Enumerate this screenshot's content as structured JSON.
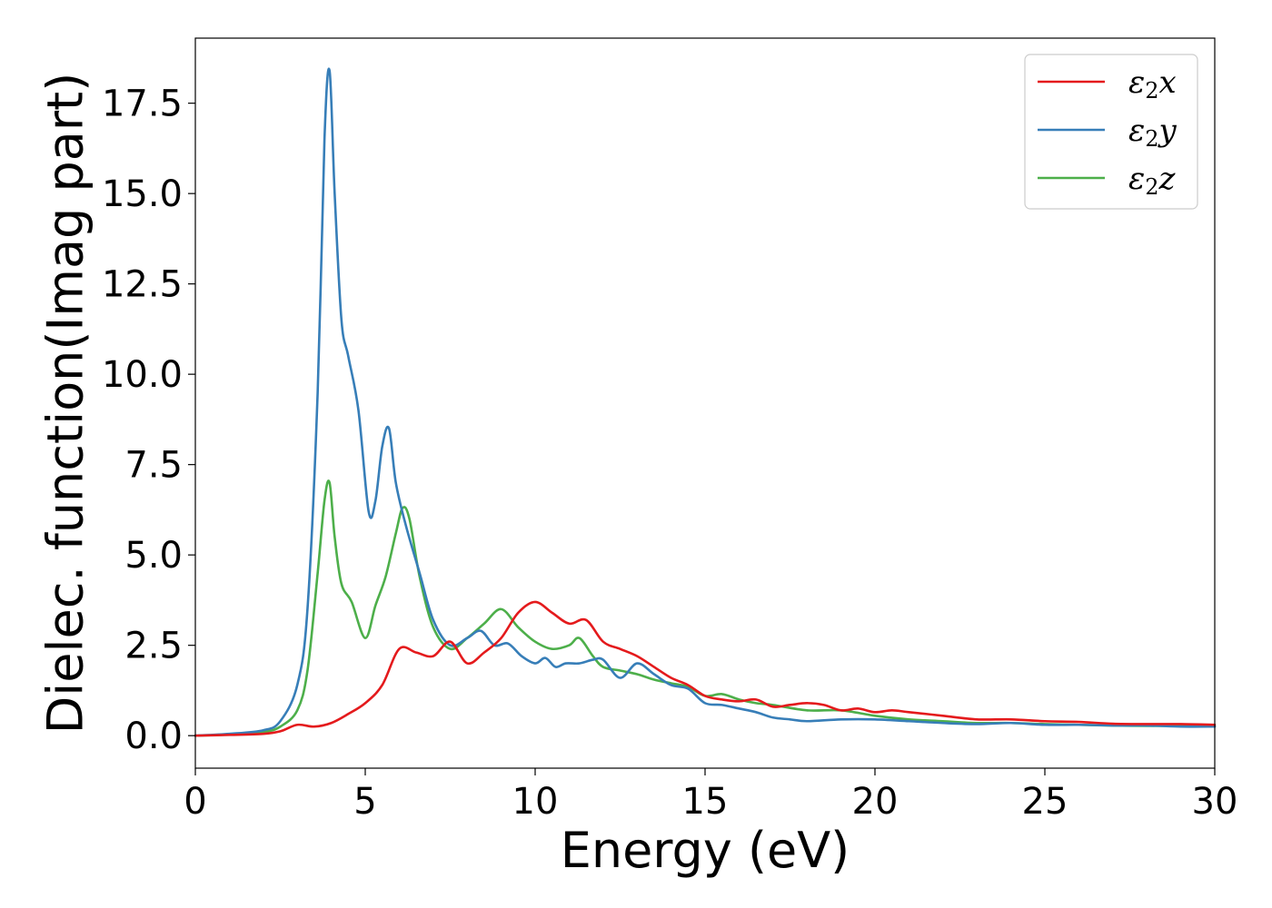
{
  "chart_data": {
    "type": "line",
    "title": "",
    "xlabel": "Energy (eV)",
    "ylabel": "Dielec. function(Imag part)",
    "xlim": [
      0,
      30
    ],
    "ylim": [
      -0.9,
      19.3
    ],
    "xticks": [
      0,
      5,
      10,
      15,
      20,
      25,
      30
    ],
    "xtick_labels": [
      "0",
      "5",
      "10",
      "15",
      "20",
      "25",
      "30"
    ],
    "yticks": [
      0,
      2.5,
      5,
      7.5,
      10,
      12.5,
      15,
      17.5
    ],
    "ytick_labels": [
      "0.0",
      "2.5",
      "5.0",
      "7.5",
      "10.0",
      "12.5",
      "15.0",
      "17.5"
    ],
    "grid": false,
    "legend_position": "top-right",
    "series": [
      {
        "name": "ε2x",
        "legend_label": "ε",
        "legend_sub": "2",
        "legend_suffix": "x",
        "color": "#e41a1c",
        "x": [
          0,
          1,
          2,
          2.5,
          3,
          3.5,
          4,
          4.5,
          5,
          5.5,
          6,
          6.5,
          7,
          7.5,
          8,
          8.5,
          9,
          9.5,
          10,
          10.5,
          11,
          11.5,
          12,
          12.5,
          13,
          13.5,
          14,
          14.5,
          15,
          15.5,
          16,
          16.5,
          17,
          17.5,
          18,
          18.5,
          19,
          19.5,
          20,
          20.5,
          21,
          22,
          23,
          24,
          25,
          26,
          27,
          28,
          29,
          30
        ],
        "y": [
          0,
          0.02,
          0.05,
          0.12,
          0.3,
          0.25,
          0.35,
          0.6,
          0.9,
          1.4,
          2.4,
          2.3,
          2.2,
          2.6,
          2.0,
          2.3,
          2.7,
          3.4,
          3.7,
          3.4,
          3.1,
          3.2,
          2.6,
          2.4,
          2.2,
          1.9,
          1.6,
          1.4,
          1.1,
          1.0,
          0.95,
          1.0,
          0.8,
          0.85,
          0.9,
          0.85,
          0.7,
          0.75,
          0.65,
          0.7,
          0.65,
          0.55,
          0.45,
          0.45,
          0.4,
          0.38,
          0.33,
          0.32,
          0.32,
          0.3
        ]
      },
      {
        "name": "ε2y",
        "legend_label": "ε",
        "legend_sub": "2",
        "legend_suffix": "y",
        "color": "#377eb8",
        "x": [
          0,
          1,
          2,
          2.5,
          3,
          3.3,
          3.6,
          3.8,
          3.95,
          4.1,
          4.3,
          4.5,
          4.8,
          5.1,
          5.3,
          5.5,
          5.7,
          5.9,
          6.2,
          6.6,
          7,
          7.5,
          8,
          8.4,
          8.8,
          9.2,
          9.6,
          10,
          10.3,
          10.6,
          10.9,
          11.3,
          11.7,
          12,
          12.5,
          13,
          13.5,
          14,
          14.5,
          15,
          15.5,
          16,
          16.5,
          17,
          17.5,
          18,
          19,
          20,
          21,
          22,
          23,
          24,
          25,
          26,
          27,
          28,
          29,
          30
        ],
        "y": [
          0,
          0.05,
          0.15,
          0.4,
          1.4,
          3.5,
          9.5,
          16.5,
          18.4,
          15.0,
          11.5,
          10.5,
          9.0,
          6.2,
          6.5,
          8.0,
          8.5,
          7.0,
          5.8,
          4.5,
          3.2,
          2.5,
          2.7,
          2.9,
          2.5,
          2.55,
          2.2,
          2.0,
          2.15,
          1.9,
          2.0,
          2.0,
          2.1,
          2.1,
          1.6,
          2.0,
          1.7,
          1.4,
          1.3,
          0.9,
          0.85,
          0.75,
          0.65,
          0.5,
          0.45,
          0.4,
          0.45,
          0.45,
          0.4,
          0.35,
          0.32,
          0.35,
          0.3,
          0.3,
          0.28,
          0.28,
          0.25,
          0.25
        ]
      },
      {
        "name": "ε2z",
        "legend_label": "ε",
        "legend_sub": "2",
        "legend_suffix": "z",
        "color": "#4daf4a",
        "x": [
          0,
          1,
          2,
          2.5,
          3,
          3.3,
          3.6,
          3.8,
          3.95,
          4.1,
          4.3,
          4.6,
          5.0,
          5.3,
          5.6,
          5.9,
          6.1,
          6.3,
          6.6,
          7,
          7.5,
          8,
          8.5,
          9,
          9.5,
          10,
          10.5,
          11,
          11.3,
          11.7,
          12,
          12.5,
          13,
          13.5,
          14,
          14.5,
          15,
          15.5,
          16,
          16.5,
          17,
          18,
          19,
          20,
          21,
          22,
          23,
          24,
          25,
          26,
          27,
          28,
          29,
          30
        ],
        "y": [
          0,
          0.03,
          0.1,
          0.25,
          0.7,
          1.8,
          4.5,
          6.5,
          7.0,
          5.5,
          4.2,
          3.7,
          2.7,
          3.6,
          4.4,
          5.6,
          6.3,
          6.0,
          4.4,
          3.0,
          2.4,
          2.7,
          3.1,
          3.5,
          3.0,
          2.6,
          2.4,
          2.5,
          2.7,
          2.2,
          1.9,
          1.8,
          1.7,
          1.55,
          1.45,
          1.35,
          1.1,
          1.15,
          1.0,
          0.9,
          0.85,
          0.7,
          0.7,
          0.55,
          0.45,
          0.4,
          0.35,
          0.35,
          0.32,
          0.3,
          0.28,
          0.27,
          0.27,
          0.26
        ]
      }
    ]
  }
}
